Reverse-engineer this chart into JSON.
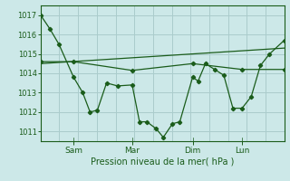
{
  "background_color": "#cce8e8",
  "grid_color": "#aacccc",
  "line_color": "#1a5c1a",
  "xlabel": "Pression niveau de la mer( hPa )",
  "xtick_labels": [
    "Sam",
    "Mar",
    "Dim",
    "Lun"
  ],
  "xtick_positions": [
    18,
    50,
    83,
    110
  ],
  "xlim": [
    0,
    133
  ],
  "ylim": [
    1010.5,
    1017.5
  ],
  "yticks": [
    1011,
    1012,
    1013,
    1014,
    1015,
    1016,
    1017
  ],
  "line1_x": [
    0,
    5,
    10,
    18,
    23,
    27,
    31,
    36,
    42,
    50,
    54,
    58,
    63,
    67,
    72,
    76,
    83,
    86,
    90,
    95,
    100,
    105,
    110,
    115,
    120,
    125,
    133
  ],
  "line1_y": [
    1017.0,
    1016.3,
    1015.5,
    1013.8,
    1013.0,
    1012.0,
    1012.1,
    1013.5,
    1013.35,
    1013.4,
    1011.5,
    1011.5,
    1011.15,
    1010.7,
    1011.4,
    1011.5,
    1013.8,
    1013.6,
    1014.5,
    1014.2,
    1013.9,
    1012.2,
    1012.2,
    1012.8,
    1014.4,
    1015.0,
    1015.7
  ],
  "line2_x": [
    0,
    18,
    50,
    83,
    110,
    133
  ],
  "line2_y": [
    1014.6,
    1014.6,
    1014.15,
    1014.5,
    1014.2,
    1014.2
  ],
  "line3_x": [
    0,
    133
  ],
  "line3_y": [
    1014.5,
    1015.3
  ]
}
